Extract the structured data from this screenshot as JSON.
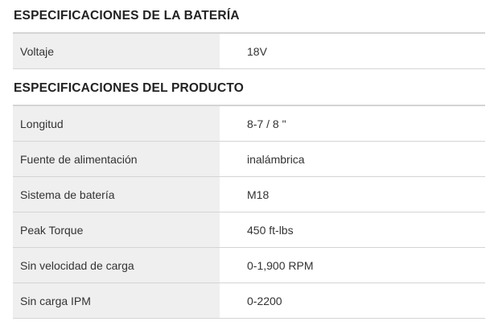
{
  "battery": {
    "title": "ESPECIFICACIONES DE LA BATERÍA",
    "rows": [
      {
        "label": "Voltaje",
        "value": "18V"
      }
    ]
  },
  "product": {
    "title": "ESPECIFICACIONES DEL PRODUCTO",
    "rows": [
      {
        "label": "Longitud",
        "value": "8-7 / 8 \""
      },
      {
        "label": "Fuente de alimentación",
        "value": "inalámbrica"
      },
      {
        "label": "Sistema de batería",
        "value": "M18"
      },
      {
        "label": "Peak Torque",
        "value": "450 ft-lbs"
      },
      {
        "label": "Sin velocidad de carga",
        "value": "0-1,900 RPM"
      },
      {
        "label": "Sin carga IPM",
        "value": "0-2200"
      }
    ]
  }
}
